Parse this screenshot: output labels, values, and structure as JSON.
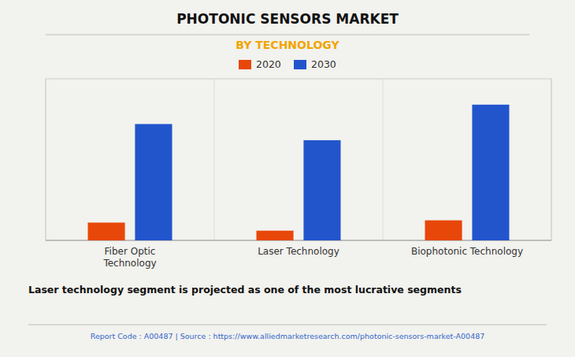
{
  "chart_data": {
    "type": "bar",
    "title": "PHOTONIC SENSORS MARKET",
    "subtitle": "BY TECHNOLOGY",
    "categories": [
      "Fiber Optic\nTechnology",
      "Laser Technology",
      "Biophotonic Technology"
    ],
    "series": [
      {
        "name": "2020",
        "color": "#e8470a",
        "values": [
          0.55,
          0.3,
          0.62
        ]
      },
      {
        "name": "2030",
        "color": "#2255cc",
        "values": [
          3.6,
          3.1,
          4.2
        ]
      }
    ],
    "ylim": [
      0,
      5.0
    ],
    "grid": false,
    "legend": "top",
    "tick_labels": "x",
    "annotations": [
      "Laser technology segment is projected as one of the most lucrative segments",
      "Report Code : A00487  |  Source : https://www.alliedmarketresearch.com/photonic-sensors-market-A00487"
    ]
  }
}
